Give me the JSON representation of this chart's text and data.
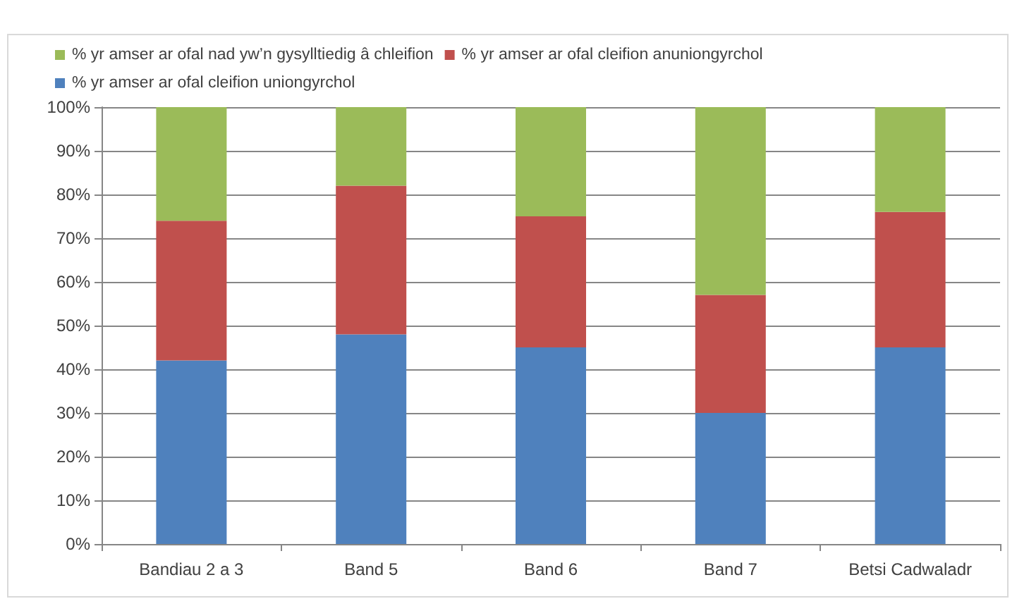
{
  "chart_data": {
    "type": "bar",
    "stacked": true,
    "categories": [
      "Bandiau 2 a 3",
      "Band 5",
      "Band 6",
      "Band 7",
      "Betsi Cadwaladr"
    ],
    "series": [
      {
        "name": "% yr amser ar ofal cleifion uniongyrchol",
        "color": "#4f81bd",
        "values": [
          42,
          48,
          45,
          30,
          45
        ]
      },
      {
        "name": "% yr amser ar ofal cleifion anuniongyrchol",
        "color": "#c0504d",
        "values": [
          32,
          34,
          30,
          27,
          31
        ]
      },
      {
        "name": "% yr amser ar ofal nad yw’n gysylltiedig â chleifion",
        "color": "#9bbb59",
        "values": [
          26,
          18,
          25,
          43,
          24
        ]
      }
    ],
    "ylim": [
      0,
      100
    ],
    "yticks": [
      {
        "value": 0,
        "label": "0%"
      },
      {
        "value": 10,
        "label": "10%"
      },
      {
        "value": 20,
        "label": "20%"
      },
      {
        "value": 30,
        "label": "30%"
      },
      {
        "value": 40,
        "label": "40%"
      },
      {
        "value": 50,
        "label": "50%"
      },
      {
        "value": 60,
        "label": "60%"
      },
      {
        "value": 70,
        "label": "70%"
      },
      {
        "value": 80,
        "label": "80%"
      },
      {
        "value": 90,
        "label": "90%"
      },
      {
        "value": 100,
        "label": "100%"
      }
    ],
    "grid": "y",
    "legend": "top left"
  }
}
